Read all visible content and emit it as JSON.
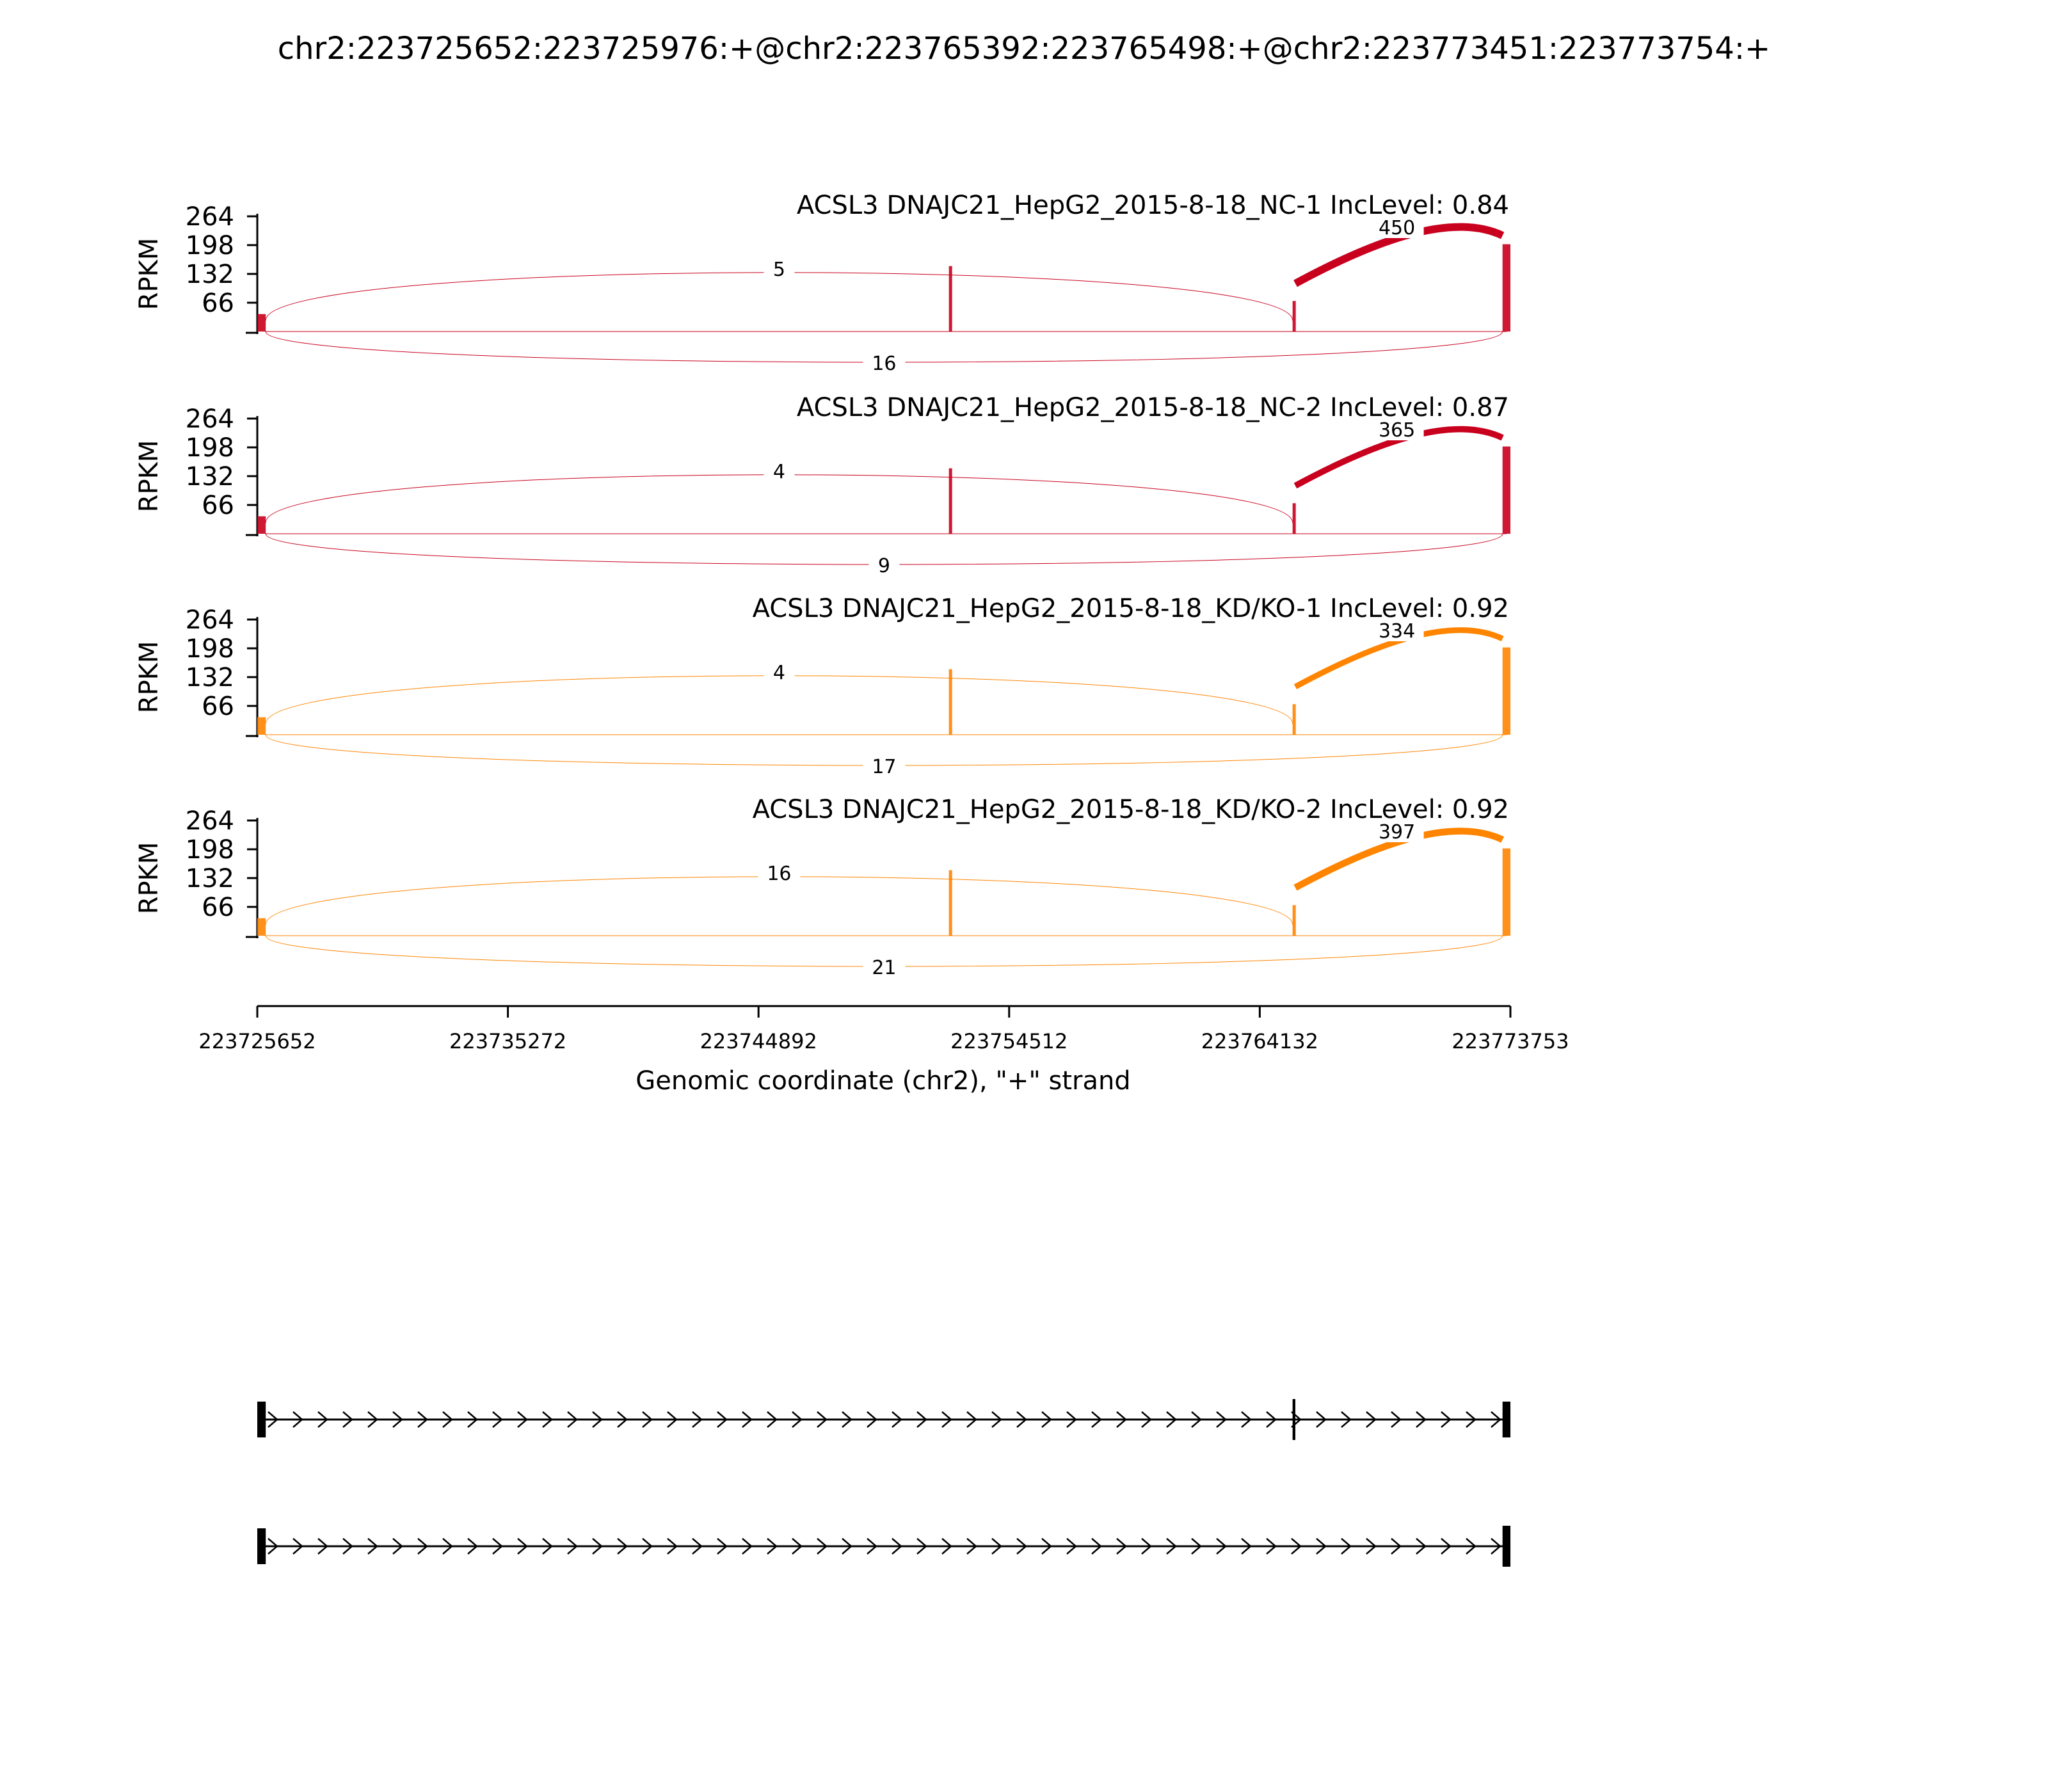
{
  "title": "chr2:223725652:223725976:+@chr2:223765392:223765498:+@chr2:223773451:223773754:+",
  "colors": {
    "nc": "#c8001e",
    "kd": "#ff8400",
    "axis": "#000000",
    "gene": "#000000"
  },
  "chart_data": {
    "type": "sashimi",
    "title": "chr2:223725652:223725976:+@chr2:223765392:223765498:+@chr2:223773451:223773754:+",
    "xlabel": "Genomic coordinate (chr2), \"+\" strand",
    "ylabel": "RPKM",
    "xlim": [
      223725652,
      223773753
    ],
    "x_ticks": [
      223725652,
      223735272,
      223744892,
      223754512,
      223764132,
      223773753
    ],
    "y_ticks": [
      66,
      132,
      198,
      264
    ],
    "ylim": [
      0,
      264
    ],
    "exons": [
      {
        "start": 223725652,
        "end": 223725976
      },
      {
        "start": 223765392,
        "end": 223765498
      },
      {
        "start": 223773451,
        "end": 223773754
      }
    ],
    "tracks": [
      {
        "name": "ACSL3 DNAJC21_HepG2_2015-8-18_NC-1 IncLevel: 0.84",
        "group": "nc",
        "coverage": [
          {
            "start": 223725652,
            "end": 223725976,
            "rpkm": 40
          },
          {
            "start": 223752200,
            "end": 223752260,
            "rpkm": 150
          },
          {
            "start": 223765392,
            "end": 223765498,
            "rpkm": 70
          },
          {
            "start": 223773451,
            "end": 223773754,
            "rpkm": 200
          }
        ],
        "junctions": [
          {
            "from": 223725976,
            "to": 223765392,
            "reads": 5,
            "side": "top"
          },
          {
            "from": 223765498,
            "to": 223773451,
            "reads": 450,
            "side": "top"
          },
          {
            "from": 223725976,
            "to": 223773451,
            "reads": 16,
            "side": "bottom"
          }
        ]
      },
      {
        "name": "ACSL3 DNAJC21_HepG2_2015-8-18_NC-2 IncLevel: 0.87",
        "group": "nc",
        "coverage": [
          {
            "start": 223725652,
            "end": 223725976,
            "rpkm": 40
          },
          {
            "start": 223752200,
            "end": 223752260,
            "rpkm": 150
          },
          {
            "start": 223765392,
            "end": 223765498,
            "rpkm": 70
          },
          {
            "start": 223773451,
            "end": 223773754,
            "rpkm": 200
          }
        ],
        "junctions": [
          {
            "from": 223725976,
            "to": 223765392,
            "reads": 4,
            "side": "top"
          },
          {
            "from": 223765498,
            "to": 223773451,
            "reads": 365,
            "side": "top"
          },
          {
            "from": 223725976,
            "to": 223773451,
            "reads": 9,
            "side": "bottom"
          }
        ]
      },
      {
        "name": "ACSL3 DNAJC21_HepG2_2015-8-18_KD/KO-1 IncLevel: 0.92",
        "group": "kd",
        "coverage": [
          {
            "start": 223725652,
            "end": 223725976,
            "rpkm": 40
          },
          {
            "start": 223752200,
            "end": 223752260,
            "rpkm": 150
          },
          {
            "start": 223765392,
            "end": 223765498,
            "rpkm": 70
          },
          {
            "start": 223773451,
            "end": 223773754,
            "rpkm": 200
          }
        ],
        "junctions": [
          {
            "from": 223725976,
            "to": 223765392,
            "reads": 4,
            "side": "top"
          },
          {
            "from": 223765498,
            "to": 223773451,
            "reads": 334,
            "side": "top"
          },
          {
            "from": 223725976,
            "to": 223773451,
            "reads": 17,
            "side": "bottom"
          }
        ]
      },
      {
        "name": "ACSL3 DNAJC21_HepG2_2015-8-18_KD/KO-2 IncLevel: 0.92",
        "group": "kd",
        "coverage": [
          {
            "start": 223725652,
            "end": 223725976,
            "rpkm": 40
          },
          {
            "start": 223752200,
            "end": 223752260,
            "rpkm": 150
          },
          {
            "start": 223765392,
            "end": 223765498,
            "rpkm": 70
          },
          {
            "start": 223773451,
            "end": 223773754,
            "rpkm": 200
          }
        ],
        "junctions": [
          {
            "from": 223725976,
            "to": 223765392,
            "reads": 16,
            "side": "top"
          },
          {
            "from": 223765498,
            "to": 223773451,
            "reads": 397,
            "side": "top"
          },
          {
            "from": 223725976,
            "to": 223773451,
            "reads": 21,
            "side": "bottom"
          }
        ]
      }
    ],
    "isoforms": [
      {
        "exons": [
          0,
          1,
          2
        ]
      },
      {
        "exons": [
          0,
          2
        ]
      }
    ]
  }
}
